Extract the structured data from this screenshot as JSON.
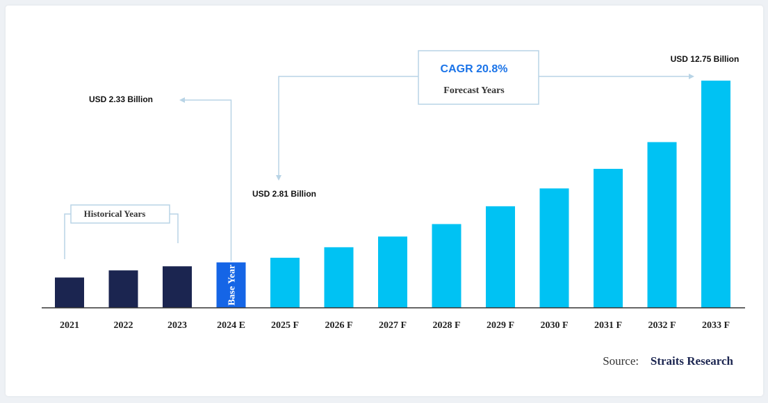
{
  "chart_data": {
    "type": "bar",
    "categories": [
      "2021",
      "2022",
      "2023",
      "2024 E",
      "2025 F",
      "2026 F",
      "2027 F",
      "2028 F",
      "2029 F",
      "2030 F",
      "2031 F",
      "2032 F",
      "2033 F"
    ],
    "values": [
      1.7,
      2.1,
      2.33,
      2.55,
      2.81,
      3.4,
      4.0,
      4.7,
      5.7,
      6.7,
      7.8,
      9.3,
      12.75
    ],
    "ylim": [
      0,
      14
    ],
    "grid": false,
    "colors": {
      "historical": "#1b2550",
      "base_year": "#1565e6",
      "forecast": "#00c2f3",
      "connector": "#b8d4e6",
      "axis": "#333333"
    },
    "groups": [
      "historical",
      "historical",
      "historical",
      "base_year",
      "forecast",
      "forecast",
      "forecast",
      "forecast",
      "forecast",
      "forecast",
      "forecast",
      "forecast",
      "forecast"
    ],
    "annotations": {
      "historical_label": "Historical Years",
      "base_year_label": "Base Year",
      "cagr": "CAGR 20.8%",
      "forecast_label": "Forecast Years",
      "value_2023": "USD 2.33 Billion",
      "value_2025": "USD 2.81 Billion",
      "value_2033": "USD 12.75 Billion"
    }
  },
  "source": {
    "label": "Source:",
    "name": "Straits Research"
  }
}
